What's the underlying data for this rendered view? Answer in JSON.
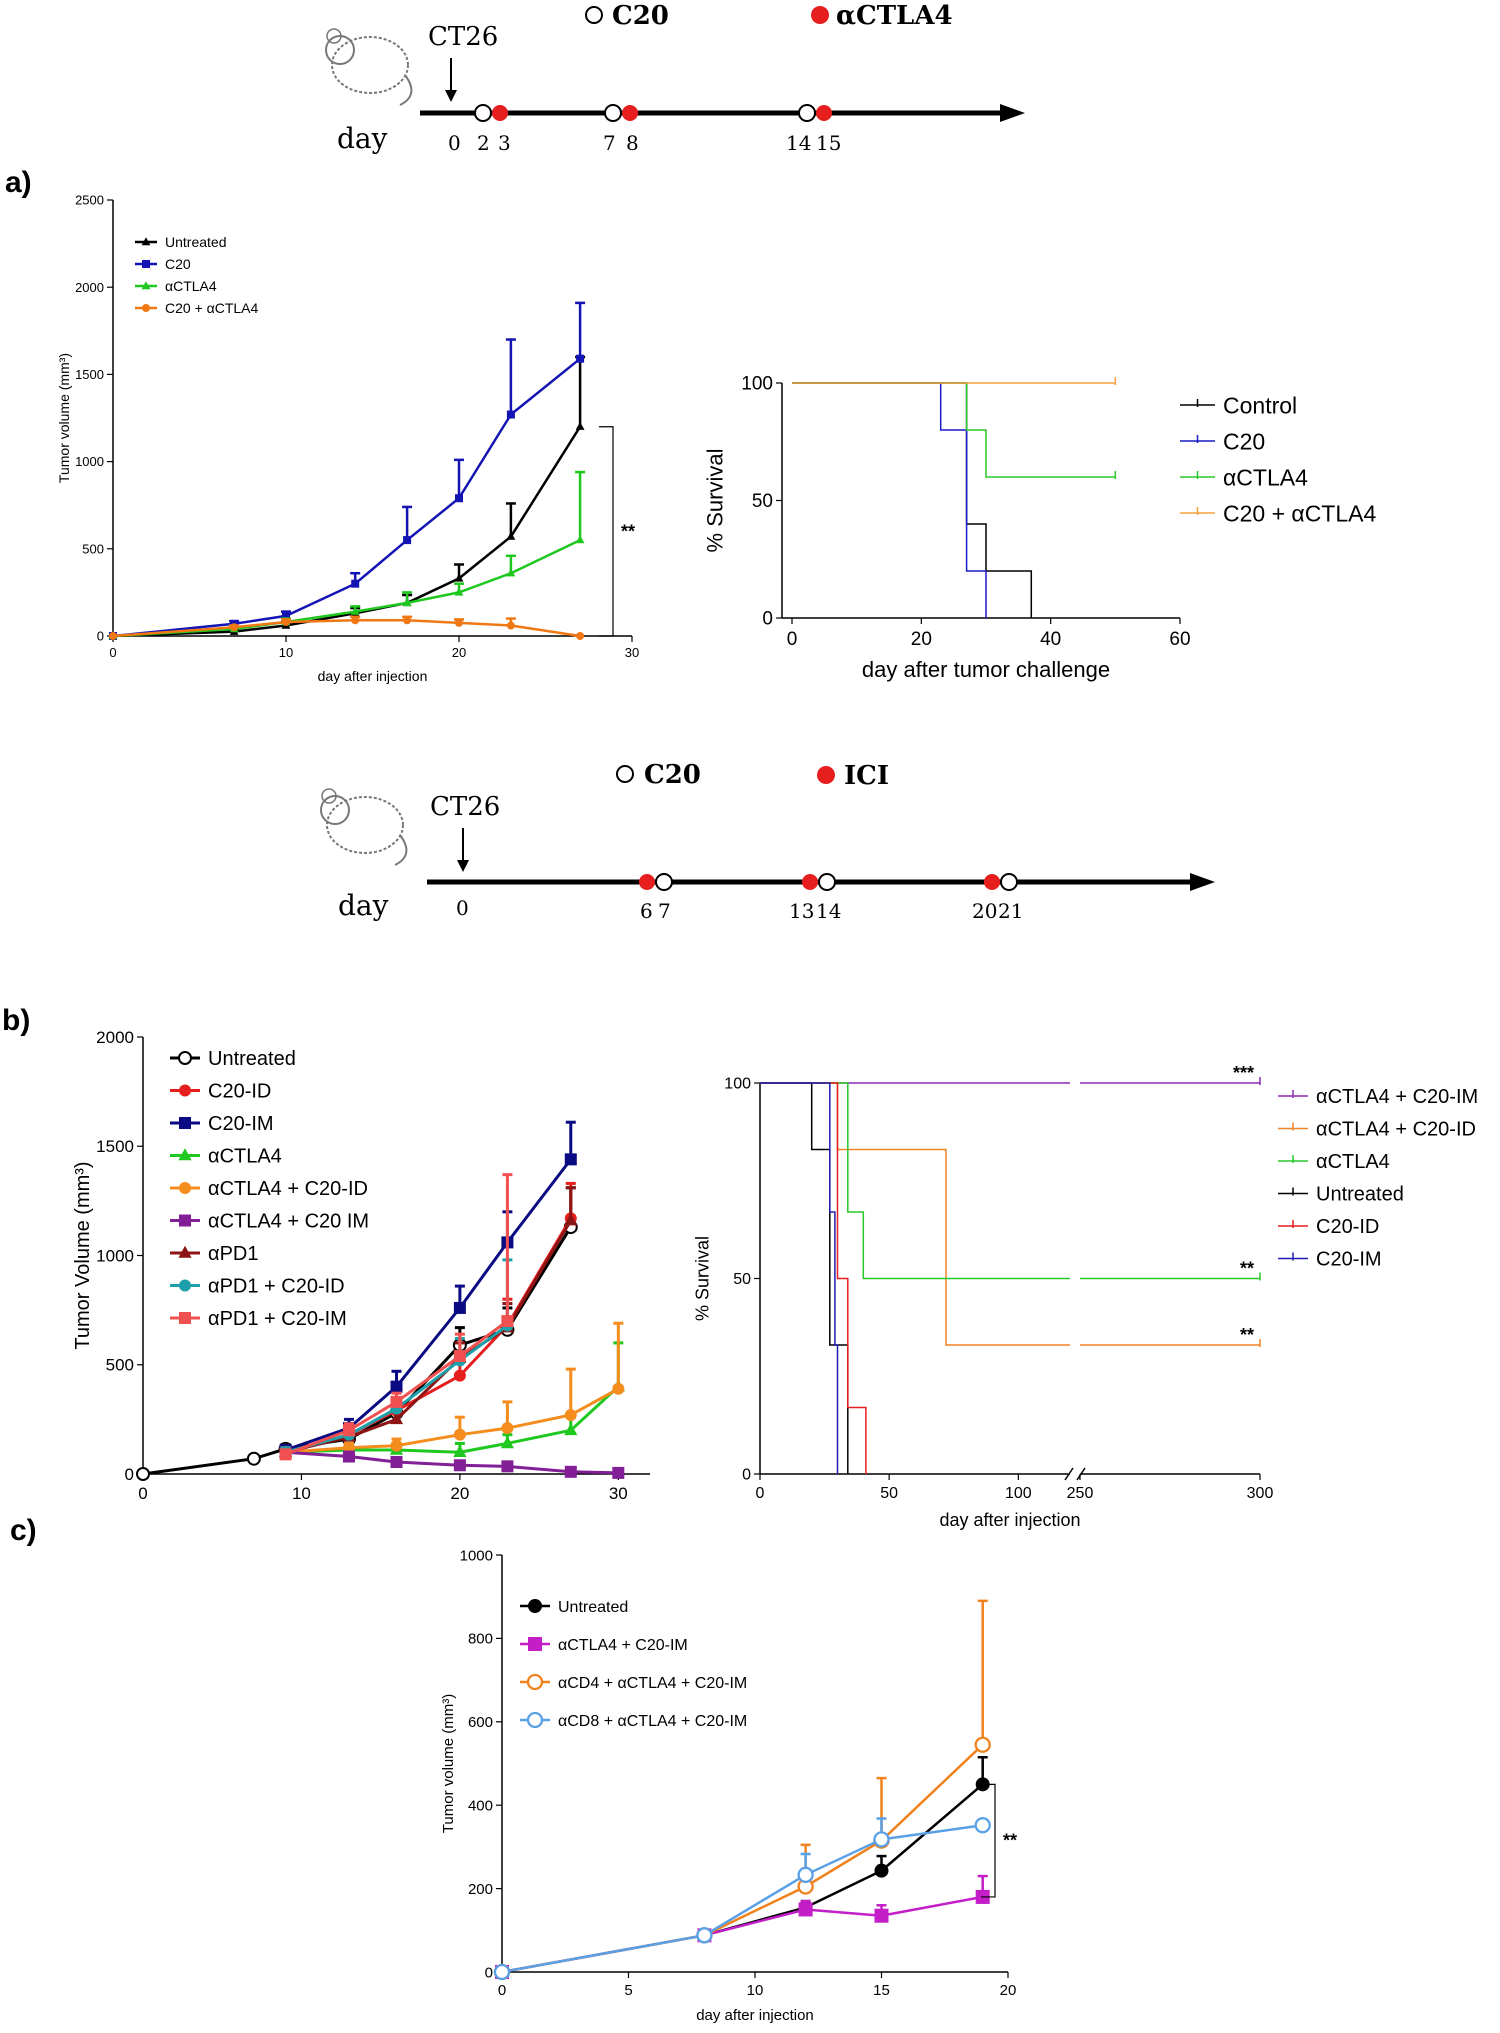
{
  "schematics": [
    {
      "event": "CT26",
      "day_label": "day",
      "legend": [
        {
          "symbol": "open-circle",
          "label": "C20"
        },
        {
          "symbol": "filled-red-circle",
          "label": "αCTLA4"
        }
      ],
      "days": [
        "0",
        "2",
        "3",
        "7",
        "8",
        "14",
        "15"
      ]
    },
    {
      "event": "CT26",
      "day_label": "day",
      "legend": [
        {
          "symbol": "open-circle",
          "label": "C20"
        },
        {
          "symbol": "filled-red-circle",
          "label": "ICI"
        }
      ],
      "days": [
        "0",
        "6",
        "7",
        "13",
        "14",
        "20",
        "21"
      ]
    }
  ],
  "panel_labels": [
    "a)",
    "b)",
    "c)"
  ],
  "chart_data": [
    {
      "id": "a-tumor",
      "type": "line",
      "xlabel": "day after injection",
      "ylabel": "Tumor volume (mm³)",
      "xlim": [
        0,
        30
      ],
      "ylim": [
        0,
        2500
      ],
      "xticks": [
        "0",
        "10",
        "20",
        "30"
      ],
      "yticks": [
        "0",
        "500",
        "1000",
        "1500",
        "2000",
        "2500"
      ],
      "series": [
        {
          "name": "Untreated",
          "color": "#000000",
          "marker": "triangle",
          "x": [
            0,
            7,
            10,
            14,
            17,
            20,
            23,
            27
          ],
          "y": [
            0,
            25,
            60,
            130,
            190,
            330,
            570,
            1200
          ],
          "err": [
            0,
            15,
            20,
            30,
            45,
            80,
            190,
            400
          ]
        },
        {
          "name": "C20",
          "color": "#1414b4",
          "marker": "square",
          "x": [
            0,
            7,
            10,
            14,
            17,
            20,
            23,
            27
          ],
          "y": [
            0,
            70,
            115,
            300,
            550,
            790,
            1270,
            1590
          ],
          "err": [
            0,
            15,
            25,
            60,
            190,
            220,
            430,
            320
          ]
        },
        {
          "name": "αCTLA4",
          "color": "#1ec81e",
          "marker": "triangle",
          "x": [
            0,
            7,
            10,
            14,
            17,
            20,
            23,
            27
          ],
          "y": [
            0,
            40,
            80,
            140,
            190,
            250,
            360,
            550
          ],
          "err": [
            0,
            10,
            20,
            30,
            60,
            50,
            100,
            390
          ]
        },
        {
          "name": "C20 + αCTLA4",
          "color": "#f07814",
          "marker": "circle",
          "x": [
            0,
            7,
            10,
            14,
            17,
            20,
            23,
            27
          ],
          "y": [
            0,
            50,
            80,
            90,
            90,
            75,
            60,
            0
          ],
          "err": [
            0,
            10,
            15,
            20,
            20,
            20,
            40,
            0
          ]
        }
      ],
      "annotation": "**"
    },
    {
      "id": "a-survival",
      "type": "line",
      "xlabel": "day after tumor challenge",
      "ylabel": "% Survival",
      "xlim": [
        0,
        60
      ],
      "ylim": [
        0,
        100
      ],
      "xticks": [
        "0",
        "20",
        "40",
        "60"
      ],
      "yticks": [
        "0",
        "50",
        "100"
      ],
      "series": [
        {
          "name": "Control",
          "color": "#000000",
          "steps": [
            [
              0,
              100
            ],
            [
              27,
              100
            ],
            [
              27,
              40
            ],
            [
              30,
              40
            ],
            [
              30,
              20
            ],
            [
              37,
              20
            ],
            [
              37,
              0
            ]
          ]
        },
        {
          "name": "C20",
          "color": "#1a1ac8",
          "steps": [
            [
              0,
              100
            ],
            [
              23,
              100
            ],
            [
              23,
              80
            ],
            [
              27,
              80
            ],
            [
              27,
              20
            ],
            [
              30,
              20
            ],
            [
              30,
              0
            ]
          ]
        },
        {
          "name": "αCTLA4",
          "color": "#28c828",
          "steps": [
            [
              0,
              100
            ],
            [
              27,
              100
            ],
            [
              27,
              80
            ],
            [
              30,
              80
            ],
            [
              30,
              60
            ],
            [
              50,
              60
            ]
          ]
        },
        {
          "name": "C20 + αCTLA4",
          "color": "#f5a041",
          "steps": [
            [
              0,
              100
            ],
            [
              50,
              100
            ]
          ]
        }
      ]
    },
    {
      "id": "b-tumor",
      "type": "line",
      "xlabel": "",
      "ylabel": "Tumor Volume (mm³)",
      "xlim": [
        0,
        32
      ],
      "ylim": [
        0,
        2000
      ],
      "xticks": [
        "0",
        "10",
        "20",
        "30"
      ],
      "yticks": [
        "0",
        "500",
        "1000",
        "1500",
        "2000"
      ],
      "series": [
        {
          "name": "Untreated",
          "color": "#000000",
          "marker": "open-circle",
          "x": [
            0,
            7,
            9,
            13,
            16,
            20,
            23,
            27
          ],
          "y": [
            0,
            70,
            115,
            160,
            280,
            590,
            660,
            1130
          ],
          "err": [
            0,
            10,
            20,
            30,
            50,
            80,
            100,
            180
          ]
        },
        {
          "name": "C20-ID",
          "color": "#e61e1e",
          "marker": "circle",
          "x": [
            9,
            13,
            16,
            20,
            23,
            27
          ],
          "y": [
            95,
            180,
            290,
            450,
            680,
            1170
          ],
          "err": [
            20,
            30,
            50,
            70,
            120,
            160
          ]
        },
        {
          "name": "C20-IM",
          "color": "#0a0a82",
          "marker": "square",
          "x": [
            9,
            13,
            16,
            20,
            23,
            27
          ],
          "y": [
            110,
            210,
            400,
            760,
            1060,
            1440
          ],
          "err": [
            20,
            40,
            70,
            100,
            140,
            170
          ]
        },
        {
          "name": "αCTLA4",
          "color": "#1ec81e",
          "marker": "triangle",
          "x": [
            9,
            13,
            16,
            20,
            23,
            27,
            30
          ],
          "y": [
            100,
            110,
            110,
            100,
            140,
            200,
            400
          ],
          "err": [
            20,
            20,
            30,
            40,
            40,
            60,
            200
          ]
        },
        {
          "name": "αCTLA4 + C20-ID",
          "color": "#f58c1e",
          "marker": "circle",
          "x": [
            9,
            13,
            16,
            20,
            23,
            27,
            30
          ],
          "y": [
            100,
            120,
            130,
            180,
            210,
            270,
            390
          ],
          "err": [
            20,
            20,
            30,
            80,
            120,
            210,
            300
          ]
        },
        {
          "name": "αCTLA4 + C20 IM",
          "color": "#821e96",
          "marker": "square",
          "x": [
            9,
            13,
            16,
            20,
            23,
            27,
            30
          ],
          "y": [
            100,
            80,
            55,
            40,
            35,
            10,
            5
          ],
          "err": [
            0,
            0,
            0,
            0,
            0,
            0,
            0
          ]
        },
        {
          "name": "αPD1",
          "color": "#8c1414",
          "marker": "triangle",
          "x": [
            9,
            13,
            16,
            20,
            23,
            27
          ],
          "y": [
            100,
            170,
            250,
            530,
            670,
            1160
          ],
          "err": [
            20,
            30,
            50,
            70,
            110,
            150
          ]
        },
        {
          "name": "αPD1 + C20-ID",
          "color": "#1ea0aa",
          "marker": "circle",
          "x": [
            9,
            13,
            16,
            20,
            23
          ],
          "y": [
            100,
            180,
            300,
            520,
            680
          ],
          "err": [
            20,
            30,
            50,
            100,
            300
          ]
        },
        {
          "name": "αPD1 + C20-IM",
          "color": "#f05050",
          "marker": "square",
          "x": [
            9,
            13,
            16,
            20,
            23
          ],
          "y": [
            90,
            200,
            330,
            540,
            700
          ],
          "err": [
            20,
            30,
            40,
            100,
            670
          ]
        }
      ]
    },
    {
      "id": "b-survival",
      "type": "line",
      "xlabel": "day after injection",
      "ylabel": "% Survival",
      "xlim": [
        0,
        300
      ],
      "ylim": [
        0,
        100
      ],
      "axis_break": [
        120,
        250
      ],
      "xticks": [
        "0",
        "50",
        "100",
        "250",
        "300"
      ],
      "yticks": [
        "0",
        "50",
        "100"
      ],
      "series": [
        {
          "name": "αCTLA4 + C20-IM",
          "color": "#8c28b4",
          "steps": [
            [
              0,
              100
            ],
            [
              300,
              100
            ]
          ],
          "sig": "***"
        },
        {
          "name": "αCTLA4 + C20-ID",
          "color": "#f08228",
          "steps": [
            [
              0,
              100
            ],
            [
              30,
              100
            ],
            [
              30,
              83
            ],
            [
              72,
              83
            ],
            [
              72,
              33
            ],
            [
              300,
              33
            ]
          ],
          "sig": "**"
        },
        {
          "name": "αCTLA4",
          "color": "#28c828",
          "steps": [
            [
              0,
              100
            ],
            [
              34,
              100
            ],
            [
              34,
              67
            ],
            [
              40,
              67
            ],
            [
              40,
              50
            ],
            [
              300,
              50
            ]
          ],
          "sig": "**"
        },
        {
          "name": "Untreated",
          "color": "#000000",
          "steps": [
            [
              0,
              100
            ],
            [
              20,
              100
            ],
            [
              20,
              83
            ],
            [
              27,
              83
            ],
            [
              27,
              33
            ],
            [
              34,
              33
            ],
            [
              34,
              0
            ]
          ]
        },
        {
          "name": "C20-ID",
          "color": "#e61e1e",
          "steps": [
            [
              0,
              100
            ],
            [
              30,
              100
            ],
            [
              30,
              50
            ],
            [
              34,
              50
            ],
            [
              34,
              17
            ],
            [
              41,
              17
            ],
            [
              41,
              0
            ]
          ]
        },
        {
          "name": "C20-IM",
          "color": "#1e1eb4",
          "steps": [
            [
              0,
              100
            ],
            [
              27,
              100
            ],
            [
              27,
              67
            ],
            [
              29,
              67
            ],
            [
              29,
              33
            ],
            [
              30,
              33
            ],
            [
              30,
              0
            ]
          ]
        }
      ]
    },
    {
      "id": "c-tumor",
      "type": "line",
      "xlabel": "day after injection",
      "ylabel": "Tumor volume (mm³)",
      "xlim": [
        0,
        20
      ],
      "ylim": [
        0,
        1000
      ],
      "xticks": [
        "0",
        "5",
        "10",
        "15",
        "20"
      ],
      "yticks": [
        "0",
        "200",
        "400",
        "600",
        "800",
        "1000"
      ],
      "series": [
        {
          "name": "Untreated",
          "color": "#000000",
          "marker": "circle",
          "x": [
            0,
            8,
            12,
            15,
            19
          ],
          "y": [
            0,
            88,
            155,
            243,
            450
          ],
          "err": [
            0,
            5,
            15,
            35,
            65
          ]
        },
        {
          "name": "αCTLA4 + C20-IM",
          "color": "#c31ec8",
          "marker": "square",
          "x": [
            0,
            8,
            12,
            15,
            19
          ],
          "y": [
            0,
            88,
            150,
            135,
            180
          ],
          "err": [
            0,
            5,
            20,
            25,
            50
          ]
        },
        {
          "name": "αCD4 + αCTLA4 + C20-IM",
          "color": "#f0821e",
          "marker": "open-circle",
          "x": [
            0,
            8,
            12,
            15,
            19
          ],
          "y": [
            0,
            88,
            205,
            315,
            545
          ],
          "err": [
            0,
            5,
            100,
            150,
            345
          ]
        },
        {
          "name": "αCD8 + αCTLA4 + C20-IM",
          "color": "#5aa0e6",
          "marker": "open-circle",
          "x": [
            0,
            8,
            12,
            15,
            19
          ],
          "y": [
            0,
            88,
            233,
            318,
            352
          ],
          "err": [
            0,
            5,
            50,
            50,
            0
          ]
        }
      ],
      "annotation": "**"
    }
  ]
}
